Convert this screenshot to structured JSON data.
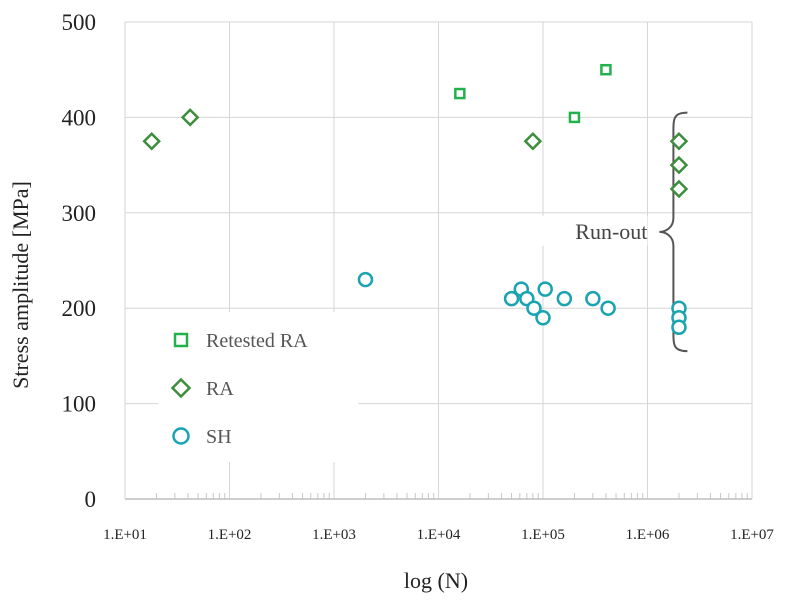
{
  "chart_data": {
    "type": "scatter",
    "xscale": "log",
    "xlim": [
      10,
      10000000
    ],
    "ylim": [
      0,
      500
    ],
    "grid": true,
    "xlabel": "log (N)",
    "ylabel": "Stress amplitude [MPa]",
    "x_tick_labels": [
      "1.E+01",
      "1.E+02",
      "1.E+03",
      "1.E+04",
      "1.E+05",
      "1.E+06",
      "1.E+07"
    ],
    "y_tick_labels": [
      "0",
      "100",
      "200",
      "300",
      "400",
      "500"
    ],
    "legend_position": "left",
    "series": [
      {
        "name": "Retested RA",
        "marker": "square",
        "color": "#22b14c",
        "points": [
          [
            16000,
            425
          ],
          [
            200000,
            400
          ],
          [
            400000,
            450
          ]
        ]
      },
      {
        "name": "RA",
        "marker": "diamond",
        "color": "#3c8d3c",
        "points": [
          [
            18,
            375
          ],
          [
            42,
            400
          ],
          [
            80000,
            375
          ],
          [
            2000000,
            375
          ],
          [
            2000000,
            350
          ],
          [
            2000000,
            325
          ]
        ]
      },
      {
        "name": "SH",
        "marker": "circle",
        "color": "#1aa3b0",
        "points": [
          [
            2000,
            230
          ],
          [
            50000,
            210
          ],
          [
            62000,
            220
          ],
          [
            70000,
            210
          ],
          [
            82000,
            200
          ],
          [
            100000,
            190
          ],
          [
            105000,
            220
          ],
          [
            160000,
            210
          ],
          [
            300000,
            210
          ],
          [
            420000,
            200
          ],
          [
            2000000,
            200
          ],
          [
            2000000,
            190
          ],
          [
            2000000,
            180
          ]
        ]
      }
    ],
    "annotations": [
      {
        "text": "Run-out",
        "brace_y_range": [
          155,
          405
        ],
        "x": 1300000
      }
    ]
  }
}
